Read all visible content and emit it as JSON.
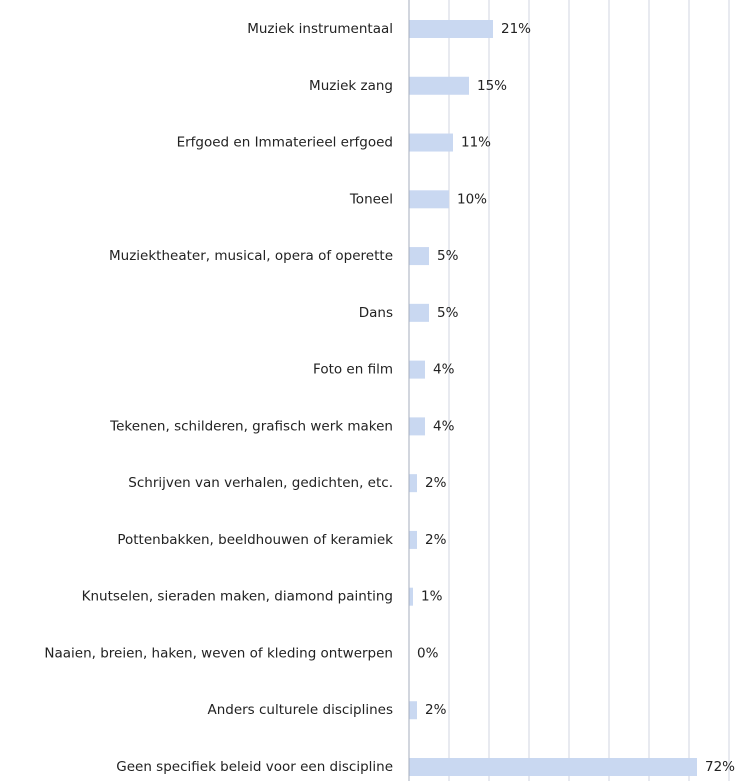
{
  "chart_data": {
    "type": "bar",
    "orientation": "horizontal",
    "categories": [
      "Muziek instrumentaal",
      "Muziek zang",
      "Erfgoed en Immaterieel erfgoed",
      "Toneel",
      "Muziektheater, musical, opera of operette",
      "Dans",
      "Foto en film",
      "Tekenen, schilderen, grafisch werk maken",
      "Schrijven van verhalen, gedichten, etc.",
      "Pottenbakken, beeldhouwen of keramiek",
      "Knutselen, sieraden maken, diamond painting",
      "Naaien, breien, haken, weven of kleding ontwerpen",
      "Anders culturele disciplines",
      "Geen specifiek beleid voor een discipline"
    ],
    "values": [
      21,
      15,
      11,
      10,
      5,
      5,
      4,
      4,
      2,
      2,
      1,
      0,
      2,
      72
    ],
    "value_labels": [
      "21%",
      "15%",
      "11%",
      "10%",
      "5%",
      "5%",
      "4%",
      "4%",
      "2%",
      "2%",
      "1%",
      "0%",
      "2%",
      "72%"
    ],
    "color": "#c9d8f1",
    "xlim": [
      0,
      80
    ],
    "xticks": [
      10,
      20,
      30,
      40,
      50,
      60,
      70,
      80
    ],
    "grid": true
  }
}
